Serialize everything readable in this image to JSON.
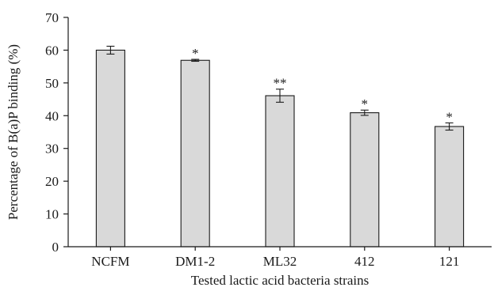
{
  "chart_data": {
    "type": "bar",
    "title": "",
    "xlabel": "Tested lactic acid bacteria strains",
    "ylabel": "Percentage of B(a)P binding (%)",
    "ylim": [
      0,
      70
    ],
    "yticks": [
      0,
      10,
      20,
      30,
      40,
      50,
      60,
      70
    ],
    "grid": false,
    "legend": "none",
    "categories": [
      "NCFM",
      "DM1-2",
      "ML32",
      "412",
      "121"
    ],
    "series": [
      {
        "values": [
          60.0,
          56.9,
          46.1,
          40.9,
          36.7
        ],
        "error": [
          1.2,
          0.3,
          2.0,
          0.8,
          1.1
        ],
        "significance": [
          "",
          "*",
          "**",
          "*",
          "*"
        ]
      }
    ],
    "colors": {
      "bar_fill": "#d9d9d9",
      "bar_stroke": "#1a1a1a",
      "axis": "#1a1a1a"
    }
  }
}
